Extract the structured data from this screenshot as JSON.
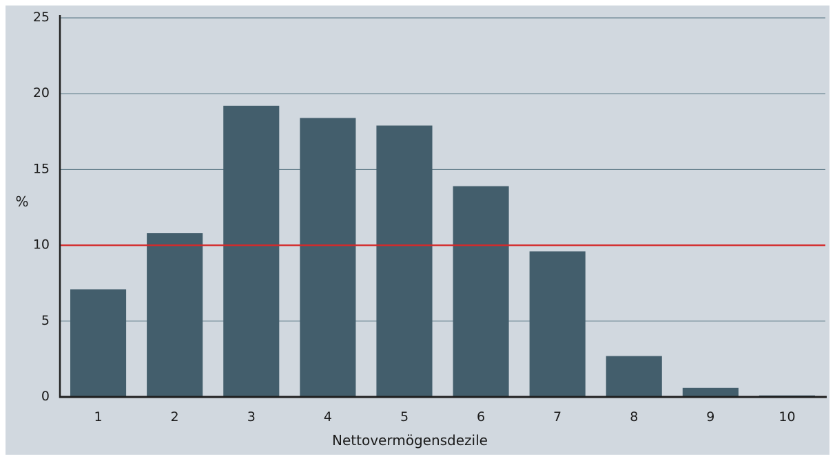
{
  "chart_data": {
    "type": "bar",
    "categories": [
      "1",
      "2",
      "3",
      "4",
      "5",
      "6",
      "7",
      "8",
      "9",
      "10"
    ],
    "values": [
      7.1,
      10.8,
      19.2,
      18.4,
      17.9,
      13.9,
      9.6,
      2.7,
      0.6,
      0.1
    ],
    "xlabel": "Nettovermögensdezile",
    "ylabel": "%",
    "ylim": [
      0,
      25
    ],
    "yticks": [
      "0",
      "5",
      "10",
      "15",
      "20",
      "25"
    ],
    "reference_line": 10,
    "grid": true,
    "colors": {
      "background": "#d1d8df",
      "bar": "#435e6c",
      "grid": "#4f6e7d",
      "reference_line": "#d42a2a",
      "axis": "#1e1e1e"
    }
  }
}
